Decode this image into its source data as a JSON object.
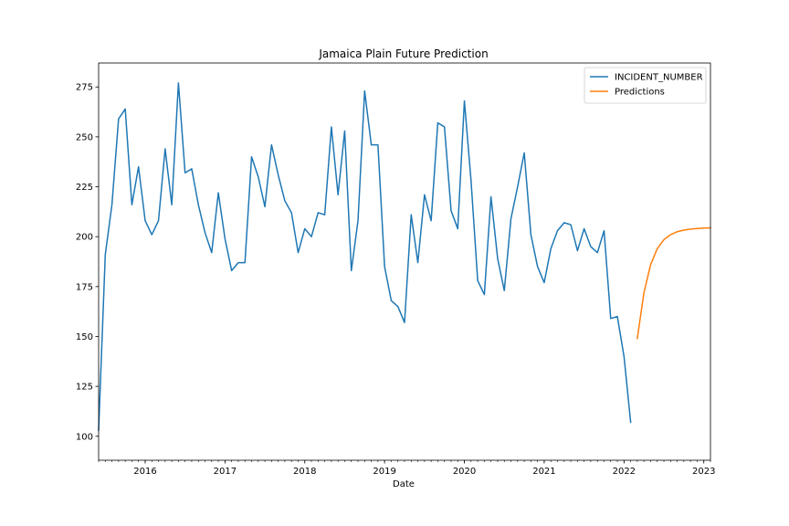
{
  "chart_data": {
    "type": "line",
    "title": "Jamaica Plain Future Prediction",
    "xlabel": "Date",
    "ylabel": "",
    "xlim": [
      "2015-06",
      "2023-02"
    ],
    "ylim": [
      88,
      287
    ],
    "x_ticks": [
      {
        "label": "2016",
        "date": "2016-01"
      },
      {
        "label": "2017",
        "date": "2017-01"
      },
      {
        "label": "2018",
        "date": "2018-01"
      },
      {
        "label": "2019",
        "date": "2019-01"
      },
      {
        "label": "2020",
        "date": "2020-01"
      },
      {
        "label": "2021",
        "date": "2021-01"
      },
      {
        "label": "2022",
        "date": "2022-01"
      },
      {
        "label": "2023",
        "date": "2023-01"
      }
    ],
    "y_ticks": [
      100,
      125,
      150,
      175,
      200,
      225,
      250,
      275
    ],
    "grid": false,
    "legend_position": "top-right",
    "series": [
      {
        "name": "INCIDENT_NUMBER",
        "color": "#1f77b4",
        "dates": [
          "2015-06",
          "2015-07",
          "2015-08",
          "2015-09",
          "2015-10",
          "2015-11",
          "2015-12",
          "2016-01",
          "2016-02",
          "2016-03",
          "2016-04",
          "2016-05",
          "2016-06",
          "2016-07",
          "2016-08",
          "2016-09",
          "2016-10",
          "2016-11",
          "2016-12",
          "2017-01",
          "2017-02",
          "2017-03",
          "2017-04",
          "2017-05",
          "2017-06",
          "2017-07",
          "2017-08",
          "2017-09",
          "2017-10",
          "2017-11",
          "2017-12",
          "2018-01",
          "2018-02",
          "2018-03",
          "2018-04",
          "2018-05",
          "2018-06",
          "2018-07",
          "2018-08",
          "2018-09",
          "2018-10",
          "2018-11",
          "2018-12",
          "2019-01",
          "2019-02",
          "2019-03",
          "2019-04",
          "2019-05",
          "2019-06",
          "2019-07",
          "2019-08",
          "2019-09",
          "2019-10",
          "2019-11",
          "2019-12",
          "2020-01",
          "2020-02",
          "2020-03",
          "2020-04",
          "2020-05",
          "2020-06",
          "2020-07",
          "2020-08",
          "2020-09",
          "2020-10",
          "2020-11",
          "2020-12",
          "2021-01",
          "2021-02",
          "2021-03",
          "2021-04",
          "2021-05",
          "2021-06",
          "2021-07",
          "2021-08",
          "2021-09",
          "2021-10",
          "2021-11",
          "2021-12",
          "2022-01",
          "2022-02"
        ],
        "values": [
          103,
          191,
          216,
          259,
          264,
          216,
          235,
          208,
          201,
          208,
          244,
          216,
          277,
          232,
          234,
          216,
          202,
          192,
          222,
          199,
          183,
          187,
          187,
          240,
          230,
          215,
          246,
          231,
          218,
          212,
          192,
          204,
          200,
          212,
          211,
          255,
          221,
          253,
          183,
          208,
          273,
          246,
          246,
          185,
          168,
          165,
          157,
          211,
          187,
          221,
          208,
          257,
          255,
          213,
          204,
          268,
          228,
          178,
          171,
          220,
          189,
          173,
          209,
          225,
          242,
          201,
          185,
          177,
          194,
          203,
          207,
          206,
          193,
          204,
          195,
          192,
          203,
          159,
          160,
          140,
          107
        ]
      },
      {
        "name": "Predictions",
        "color": "#ff7f0e",
        "dates": [
          "2022-03",
          "2022-04",
          "2022-05",
          "2022-06",
          "2022-07",
          "2022-08",
          "2022-09",
          "2022-10",
          "2022-11",
          "2022-12",
          "2023-01",
          "2023-02"
        ],
        "values": [
          149,
          172,
          186,
          194,
          198.5,
          201,
          202.5,
          203.3,
          203.8,
          204.1,
          204.3,
          204.4
        ]
      }
    ]
  }
}
